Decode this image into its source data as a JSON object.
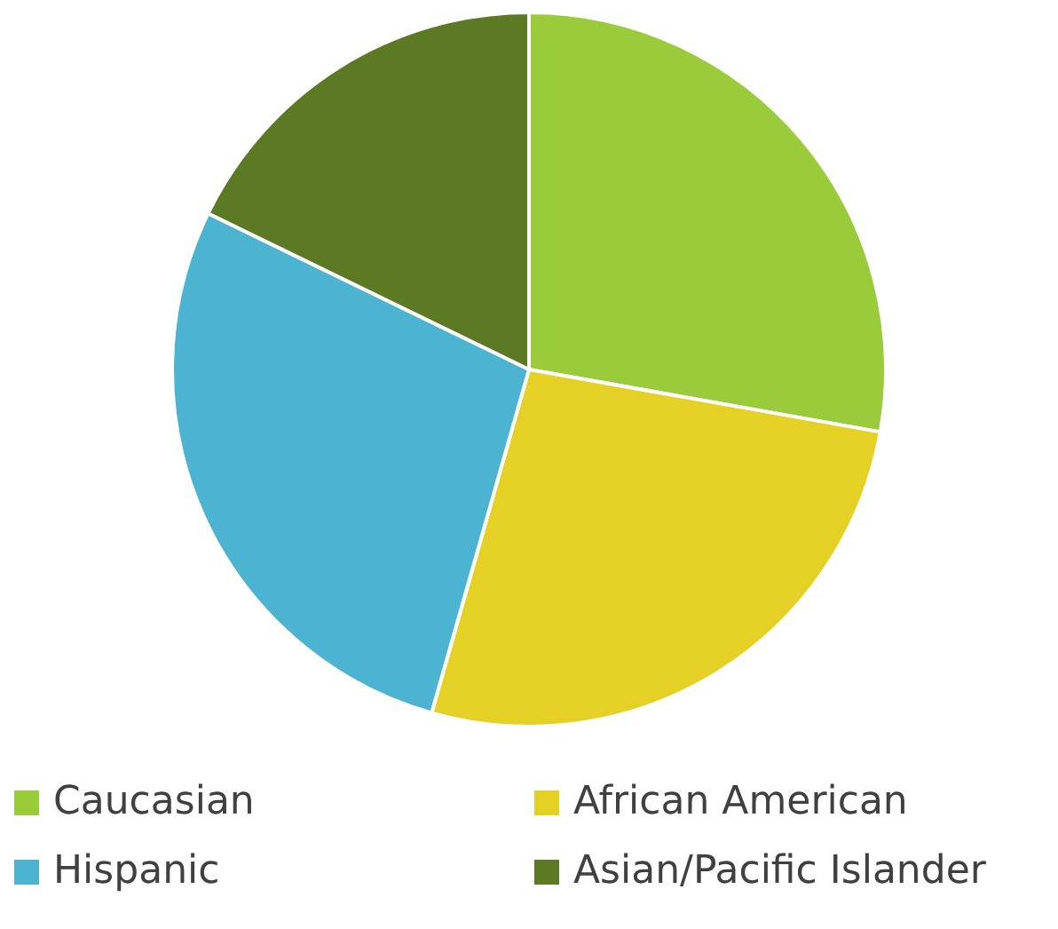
{
  "chart_data": {
    "type": "pie",
    "categories": [
      "Caucasian",
      "African American",
      "Hispanic",
      "Asian/Pacific Islander"
    ],
    "values": [
      27.8,
      26.6,
      27.8,
      17.8
    ],
    "colors": [
      "#9acb3b",
      "#e5d125",
      "#4cb3d0",
      "#5b7a23"
    ],
    "legend": "bottom"
  }
}
